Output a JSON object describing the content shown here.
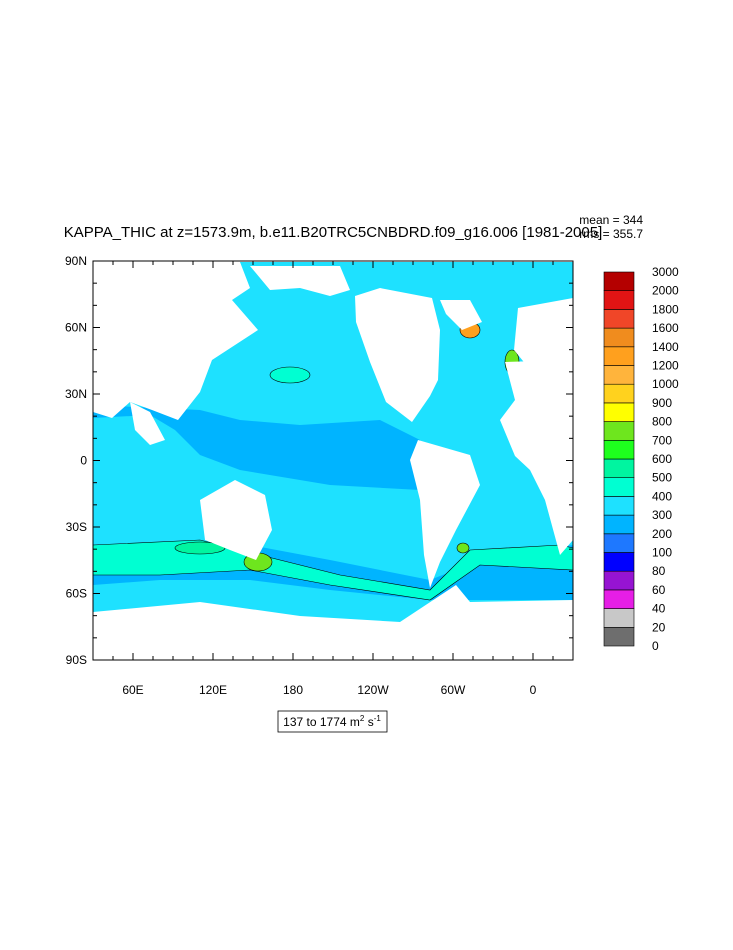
{
  "title": "KAPPA_THIC at z=1573.9m, b.e11.B20TRC5CNBDRD.f09_g16.006 [1981-2005]",
  "stats": [
    "mean = 344",
    "rms = 355.7"
  ],
  "lat_ticks": [
    "90N",
    "60N",
    "30N",
    "0",
    "30S",
    "60S",
    "90S"
  ],
  "lon_ticks": [
    "60E",
    "120E",
    "180",
    "120W",
    "60W",
    "0"
  ],
  "colorbar": {
    "levels": [
      0,
      20,
      40,
      60,
      80,
      100,
      200,
      300,
      400,
      500,
      600,
      700,
      800,
      900,
      1000,
      1200,
      1400,
      1600,
      1800,
      2000,
      3000
    ],
    "colors": [
      "#6e6e6e",
      "#c8c8c8",
      "#e61ee6",
      "#9614d2",
      "#0000ff",
      "#1e78ff",
      "#00b4ff",
      "#1ee1ff",
      "#00ffd2",
      "#00f5a0",
      "#1eff1e",
      "#6ee61e",
      "#ffff00",
      "#ffd21e",
      "#ffb43c",
      "#ffa01e",
      "#f08c1e",
      "#f04628",
      "#e11414",
      "#b40000"
    ]
  },
  "range_label": [
    "137 to 1774 m",
    "2",
    " s",
    "-1"
  ]
}
